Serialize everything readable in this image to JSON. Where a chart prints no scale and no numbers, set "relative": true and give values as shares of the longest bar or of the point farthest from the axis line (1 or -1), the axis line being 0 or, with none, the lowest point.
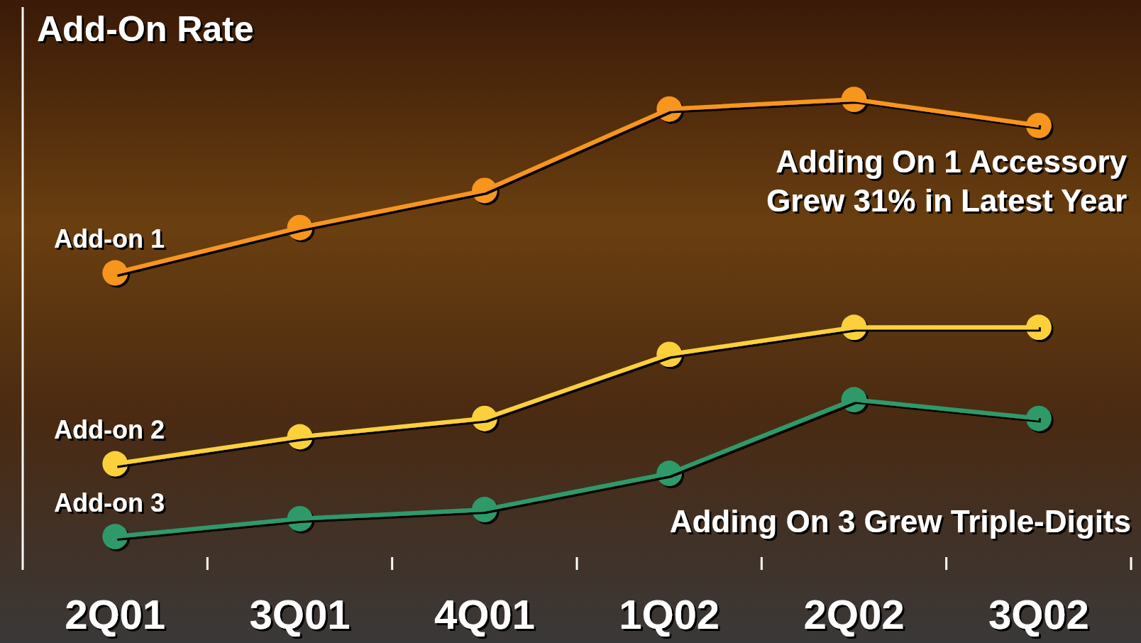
{
  "chart_data": {
    "type": "line",
    "title": "Add-On Rate",
    "relative": true,
    "categories": [
      "2Q01",
      "3Q01",
      "4Q01",
      "1Q02",
      "2Q02",
      "3Q02"
    ],
    "series": [
      {
        "name": "Add-on 1",
        "color": "#f7961e",
        "values": [
          0.621,
          0.72,
          0.801,
          0.979,
          1,
          0.943
        ]
      },
      {
        "name": "Add-on 2",
        "color": "#fcd03a",
        "values": [
          0.204,
          0.263,
          0.303,
          0.443,
          0.502,
          0.502
        ]
      },
      {
        "name": "Add-on 3",
        "color": "#2e9a6a",
        "values": [
          0.045,
          0.084,
          0.104,
          0.183,
          0.344,
          0.303
        ]
      }
    ],
    "annotations": [
      "Adding On 1 Accessory\nGrew 31% in Latest Year",
      "Adding On 3 Grew Triple-Digits"
    ],
    "marker": "circle",
    "line_style": "solid",
    "legend": false
  }
}
